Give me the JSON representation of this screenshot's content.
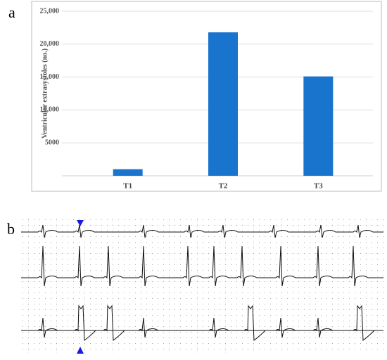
{
  "panels": [
    "a",
    "b"
  ],
  "chart_data": {
    "type": "bar",
    "y_label": "Ventricular extrasystoles (no.)",
    "categories": [
      "T1",
      "T2",
      "T3"
    ],
    "values": [
      1000,
      21800,
      15100
    ],
    "color": "#1874cd",
    "ylim": [
      0,
      25000
    ],
    "yticks": [
      5000,
      {
        "value": 10000,
        "label": "10,000"
      },
      {
        "value": 15000,
        "label": "15,000"
      },
      {
        "value": 20000,
        "label": "20,000"
      },
      {
        "value": 25000,
        "label": "25,000"
      }
    ],
    "grid": true
  }
}
